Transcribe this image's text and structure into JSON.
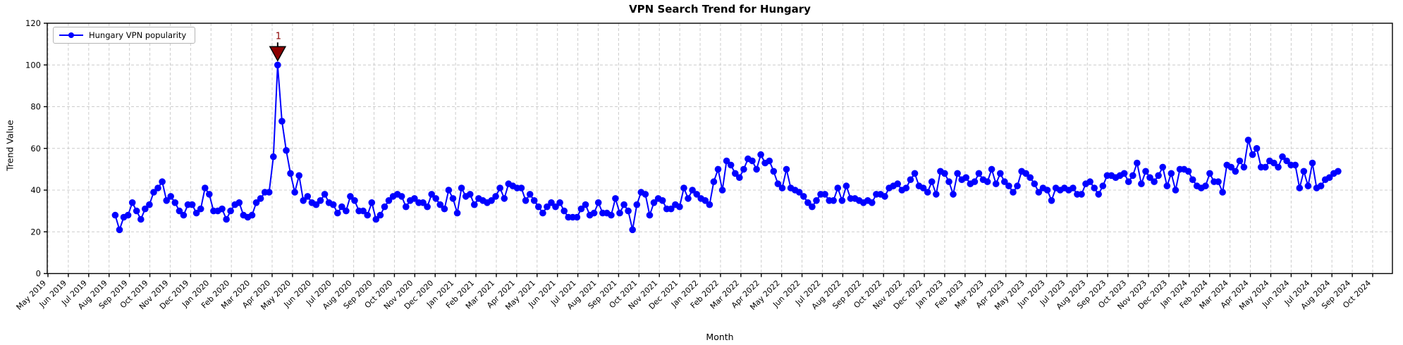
{
  "title": "VPN Search Trend for Hungary",
  "xlabel": "Month",
  "ylabel": "Trend Value",
  "legend": {
    "label": "Hungary VPN popularity"
  },
  "colors": {
    "line": "#0000ff",
    "marker": "#0000ff",
    "grid": "#cccccc",
    "axis": "#000000",
    "annotation_fill": "#8b0000",
    "annotation_edge": "#000000",
    "annotation_text": "#8b0000",
    "background": "#ffffff"
  },
  "chart_data": {
    "type": "line",
    "title": "VPN Search Trend for Hungary",
    "xlabel": "Month",
    "ylabel": "Trend Value",
    "ylim": [
      0,
      120
    ],
    "yticks": [
      0,
      20,
      40,
      60,
      80,
      100,
      120
    ],
    "grid": true,
    "legend_position": "upper left",
    "x_tick_labels": [
      "May 2019",
      "Jun 2019",
      "Jul 2019",
      "Aug 2019",
      "Sep 2019",
      "Oct 2019",
      "Nov 2019",
      "Dec 2019",
      "Jan 2020",
      "Feb 2020",
      "Mar 2020",
      "Apr 2020",
      "May 2020",
      "Jun 2020",
      "Jul 2020",
      "Aug 2020",
      "Sep 2020",
      "Oct 2020",
      "Nov 2020",
      "Dec 2020",
      "Jan 2021",
      "Feb 2021",
      "Mar 2021",
      "Apr 2021",
      "May 2021",
      "Jun 2021",
      "Jul 2021",
      "Aug 2021",
      "Sep 2021",
      "Oct 2021",
      "Nov 2021",
      "Dec 2021",
      "Jan 2022",
      "Feb 2022",
      "Mar 2022",
      "Apr 2022",
      "May 2022",
      "Jun 2022",
      "Jul 2022",
      "Aug 2022",
      "Sep 2022",
      "Oct 2022",
      "Nov 2022",
      "Dec 2022",
      "Jan 2023",
      "Feb 2023",
      "Mar 2023",
      "Apr 2023",
      "May 2023",
      "Jun 2023",
      "Jul 2023",
      "Aug 2023",
      "Sep 2023",
      "Oct 2023",
      "Nov 2023",
      "Dec 2023",
      "Jan 2024",
      "Feb 2024",
      "Mar 2024",
      "Apr 2024",
      "May 2024",
      "Jun 2024",
      "Jul 2024",
      "Aug 2024",
      "Sep 2024",
      "Oct 2024"
    ],
    "x_start_month_index": 3.3,
    "x_end_month_index": 63.3,
    "series": [
      {
        "name": "Hungary VPN popularity",
        "color": "#0000ff",
        "marker": "circle",
        "values": [
          28,
          21,
          27,
          28,
          34,
          30,
          26,
          31,
          33,
          39,
          41,
          44,
          35,
          37,
          34,
          30,
          28,
          33,
          33,
          29,
          31,
          41,
          38,
          30,
          30,
          31,
          26,
          30,
          33,
          34,
          28,
          27,
          28,
          34,
          36,
          39,
          39,
          56,
          100,
          73,
          59,
          48,
          39,
          47,
          35,
          37,
          34,
          33,
          35,
          38,
          34,
          33,
          29,
          32,
          30,
          37,
          35,
          30,
          30,
          28,
          34,
          26,
          28,
          32,
          35,
          37,
          38,
          37,
          32,
          35,
          36,
          34,
          34,
          32,
          38,
          36,
          33,
          31,
          40,
          36,
          29,
          41,
          37,
          38,
          33,
          36,
          35,
          34,
          35,
          37,
          41,
          36,
          43,
          42,
          41,
          41,
          35,
          38,
          35,
          32,
          29,
          32,
          34,
          32,
          34,
          30,
          27,
          27,
          27,
          31,
          33,
          28,
          29,
          34,
          29,
          29,
          28,
          36,
          29,
          33,
          30,
          21,
          33,
          39,
          38,
          28,
          34,
          36,
          35,
          31,
          31,
          33,
          32,
          41,
          36,
          40,
          38,
          36,
          35,
          33,
          44,
          50,
          40,
          54,
          52,
          48,
          46,
          50,
          55,
          54,
          50,
          57,
          53,
          54,
          49,
          43,
          41,
          50,
          41,
          40,
          39,
          37,
          34,
          32,
          35,
          38,
          38,
          35,
          35,
          41,
          35,
          42,
          36,
          36,
          35,
          34,
          35,
          34,
          38,
          38,
          37,
          41,
          42,
          43,
          40,
          41,
          45,
          48,
          42,
          41,
          39,
          44,
          38,
          49,
          48,
          44,
          38,
          48,
          45,
          46,
          43,
          44,
          48,
          45,
          44,
          50,
          43,
          48,
          44,
          42,
          39,
          42,
          49,
          48,
          46,
          43,
          39,
          41,
          40,
          35,
          41,
          40,
          41,
          40,
          41,
          38,
          38,
          43,
          44,
          41,
          38,
          42,
          47,
          47,
          46,
          47,
          48,
          44,
          47,
          53,
          43,
          49,
          46,
          44,
          47,
          51,
          42,
          48,
          40,
          50,
          50,
          49,
          45,
          42,
          41,
          42,
          48,
          44,
          44,
          39,
          52,
          51,
          49,
          54,
          51,
          64,
          57,
          60,
          51,
          51,
          54,
          53,
          51,
          56,
          54,
          52,
          52,
          41,
          49,
          42,
          53,
          41,
          42,
          45,
          46,
          48,
          49
        ]
      }
    ],
    "annotation": {
      "label": "1",
      "series_index": 38,
      "value": 100
    }
  }
}
